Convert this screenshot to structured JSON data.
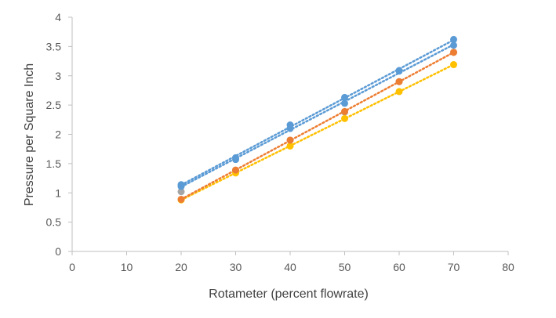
{
  "chart_data": {
    "type": "scatter",
    "title": "",
    "xlabel": "Rotameter (percent flowrate)",
    "ylabel": "Pressure per Square Inch",
    "xlim": [
      0,
      80
    ],
    "ylim": [
      0,
      4
    ],
    "x_ticks": [
      0,
      10,
      20,
      30,
      40,
      50,
      60,
      70,
      80
    ],
    "y_ticks": [
      0,
      0.5,
      1,
      1.5,
      2,
      2.5,
      3,
      3.5,
      4
    ],
    "x_tick_labels": [
      "0",
      "10",
      "20",
      "30",
      "40",
      "50",
      "60",
      "70",
      "80"
    ],
    "y_tick_labels": [
      "0",
      "0.5",
      "1",
      "1.5",
      "2",
      "2.5",
      "3",
      "3.5",
      "4"
    ],
    "grid": false,
    "legend": "none",
    "series": [
      {
        "color": "#A5A5A5",
        "x": [
          20,
          30,
          40,
          50,
          60,
          70
        ],
        "y": [
          1.02,
          1.38,
          1.9,
          2.38,
          2.9,
          3.4
        ],
        "trendline": false
      },
      {
        "color": "#FFC000",
        "x": [
          20,
          30,
          40,
          50,
          60,
          70
        ],
        "y": [
          0.88,
          1.34,
          1.8,
          2.27,
          2.73,
          3.19
        ],
        "trendline": true
      },
      {
        "color": "#ED7D31",
        "x": [
          20,
          30,
          40,
          50,
          60,
          70
        ],
        "y": [
          0.89,
          1.39,
          1.9,
          2.39,
          2.9,
          3.4
        ],
        "trendline": true
      },
      {
        "color": "#5B9BD5",
        "x": [
          20,
          30,
          40,
          50,
          60,
          70
        ],
        "y": [
          1.14,
          1.6,
          2.16,
          2.63,
          3.09,
          3.62
        ],
        "trendline": true
      },
      {
        "color": "#5B9BD5",
        "x": [
          20,
          30,
          40,
          50,
          60,
          70
        ],
        "y": [
          1.11,
          1.57,
          2.1,
          2.53,
          3.08,
          3.52
        ],
        "trendline": true
      }
    ]
  }
}
